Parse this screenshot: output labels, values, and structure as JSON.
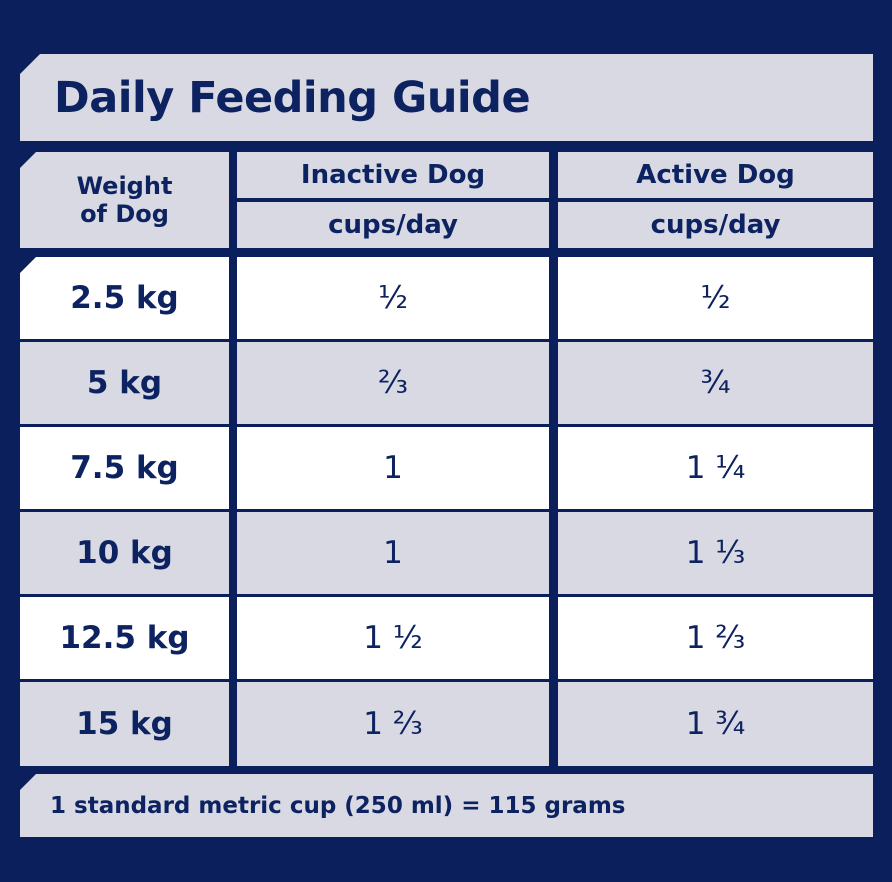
{
  "title": "Daily Feeding Guide",
  "header": {
    "weight_line1": "Weight",
    "weight_line2": "of Dog",
    "inactive": "Inactive Dog",
    "active": "Active Dog",
    "unit": "cups/day"
  },
  "rows": [
    {
      "weight": "2.5 kg",
      "inactive": "½",
      "active": "½"
    },
    {
      "weight": "5 kg",
      "inactive": "⅔",
      "active": "¾"
    },
    {
      "weight": "7.5 kg",
      "inactive": "1",
      "active": "1 ¼"
    },
    {
      "weight": "10 kg",
      "inactive": "1",
      "active": "1 ⅓"
    },
    {
      "weight": "12.5 kg",
      "inactive": "1 ½",
      "active": "1 ⅔"
    },
    {
      "weight": "15 kg",
      "inactive": "1 ⅔",
      "active": "1 ¾"
    }
  ],
  "footer": "1 standard metric cup (250 ml) = 115 grams",
  "colors": {
    "navy": "#0b1f5c",
    "text": "#0d2260",
    "grey": "#d8d9e2",
    "white": "#ffffff"
  }
}
